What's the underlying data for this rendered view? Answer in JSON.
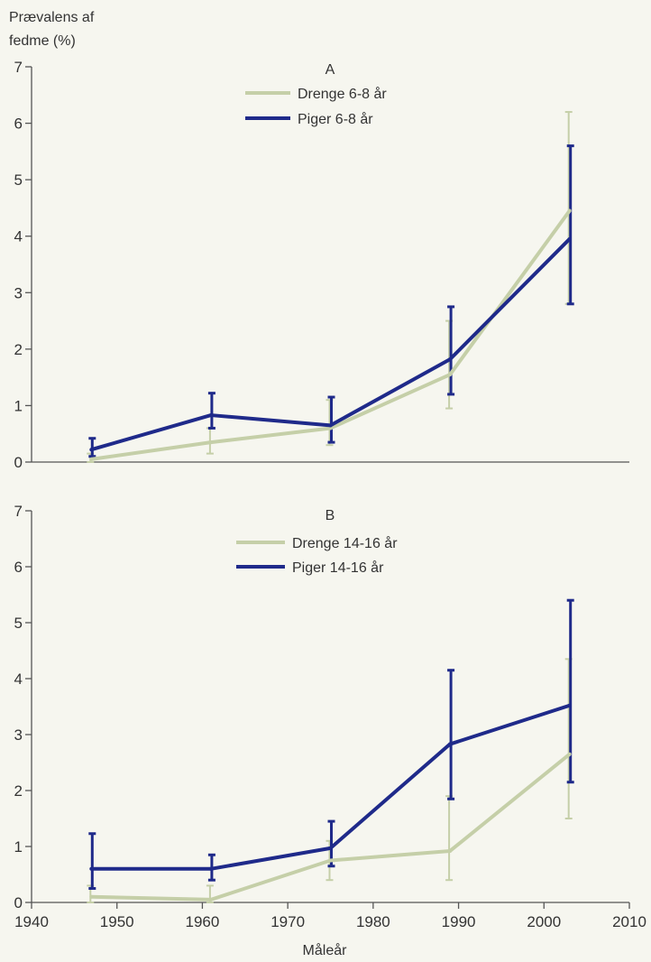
{
  "chart_data": [
    {
      "type": "line",
      "panel_label": "A",
      "ylabel_line1": "Prævalens af",
      "ylabel_line2": "fedme (%)",
      "xlim": [
        1940,
        2010
      ],
      "ylim": [
        0,
        7
      ],
      "yticks": [
        0,
        1,
        2,
        3,
        4,
        5,
        6,
        7
      ],
      "x": [
        1947,
        1961,
        1975,
        1989,
        2003
      ],
      "series": [
        {
          "name": "Drenge 6-8 år",
          "color": "#c5cfa8",
          "values": [
            0.05,
            0.35,
            0.6,
            1.55,
            4.45
          ],
          "error_low": [
            0.0,
            0.15,
            0.3,
            0.95,
            2.8
          ],
          "error_high": [
            0.15,
            0.6,
            1.1,
            2.5,
            6.2
          ]
        },
        {
          "name": "Piger 6-8 år",
          "color": "#1f2a8a",
          "values": [
            0.22,
            0.83,
            0.65,
            1.82,
            3.95
          ],
          "error_low": [
            0.1,
            0.6,
            0.35,
            1.2,
            2.8
          ],
          "error_high": [
            0.42,
            1.22,
            1.15,
            2.75,
            5.6
          ]
        }
      ]
    },
    {
      "type": "line",
      "panel_label": "B",
      "xlabel": "Måleår",
      "xlim": [
        1940,
        2010
      ],
      "ylim": [
        0,
        7
      ],
      "xticks": [
        1940,
        1950,
        1960,
        1970,
        1980,
        1990,
        2000,
        2010
      ],
      "yticks": [
        0,
        1,
        2,
        3,
        4,
        5,
        6,
        7
      ],
      "x": [
        1947,
        1961,
        1975,
        1989,
        2003
      ],
      "series": [
        {
          "name": "Drenge 14-16 år",
          "color": "#c5cfa8",
          "values": [
            0.1,
            0.05,
            0.75,
            0.92,
            2.65
          ],
          "error_low": [
            0.0,
            0.0,
            0.4,
            0.4,
            1.5
          ],
          "error_high": [
            0.3,
            0.3,
            1.1,
            1.9,
            4.35
          ]
        },
        {
          "name": "Piger 14-16 år",
          "color": "#1f2a8a",
          "values": [
            0.6,
            0.6,
            0.97,
            2.83,
            3.52
          ],
          "error_low": [
            0.25,
            0.4,
            0.65,
            1.85,
            2.15
          ],
          "error_high": [
            1.23,
            0.85,
            1.45,
            4.15,
            5.4
          ]
        }
      ]
    }
  ]
}
